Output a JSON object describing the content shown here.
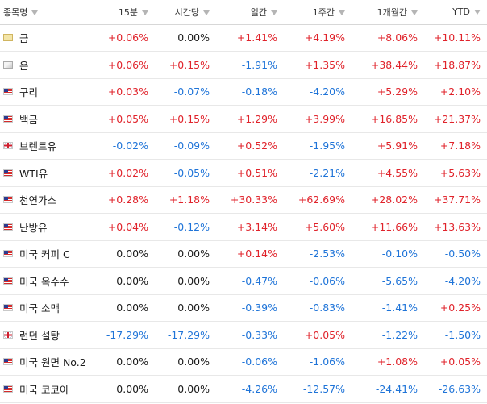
{
  "colors": {
    "positive": "#e0232b",
    "negative": "#1f74d8",
    "neutral": "#1a1a1a"
  },
  "columns": [
    "종목명",
    "15분",
    "시간당",
    "일간",
    "1주간",
    "1개월간",
    "YTD"
  ],
  "rows": [
    {
      "name": "금",
      "flag": "gold-icon",
      "values": [
        "+0.06%",
        "0.00%",
        "+1.41%",
        "+4.19%",
        "+8.06%",
        "+10.11%"
      ]
    },
    {
      "name": "은",
      "flag": "silver-icon",
      "values": [
        "+0.06%",
        "+0.15%",
        "-1.91%",
        "+1.35%",
        "+38.44%",
        "+18.87%"
      ]
    },
    {
      "name": "구리",
      "flag": "us-flag-icon",
      "values": [
        "+0.03%",
        "-0.07%",
        "-0.18%",
        "-4.20%",
        "+5.29%",
        "+2.10%"
      ]
    },
    {
      "name": "백금",
      "flag": "us-flag-icon",
      "values": [
        "+0.05%",
        "+0.15%",
        "+1.29%",
        "+3.99%",
        "+16.85%",
        "+21.37%"
      ]
    },
    {
      "name": "브렌트유",
      "flag": "uk-flag-icon",
      "values": [
        "-0.02%",
        "-0.09%",
        "+0.52%",
        "-1.95%",
        "+5.91%",
        "+7.18%"
      ]
    },
    {
      "name": "WTI유",
      "flag": "us-flag-icon",
      "values": [
        "+0.02%",
        "-0.05%",
        "+0.51%",
        "-2.21%",
        "+4.55%",
        "+5.63%"
      ]
    },
    {
      "name": "천연가스",
      "flag": "us-flag-icon",
      "values": [
        "+0.28%",
        "+1.18%",
        "+30.33%",
        "+62.69%",
        "+28.02%",
        "+37.71%"
      ]
    },
    {
      "name": "난방유",
      "flag": "us-flag-icon",
      "values": [
        "+0.04%",
        "-0.12%",
        "+3.14%",
        "+5.60%",
        "+11.66%",
        "+13.63%"
      ]
    },
    {
      "name": "미국 커피 C",
      "flag": "us-flag-icon",
      "values": [
        "0.00%",
        "0.00%",
        "+0.14%",
        "-2.53%",
        "-0.10%",
        "-0.50%"
      ]
    },
    {
      "name": "미국 옥수수",
      "flag": "us-flag-icon",
      "values": [
        "0.00%",
        "0.00%",
        "-0.47%",
        "-0.06%",
        "-5.65%",
        "-4.20%"
      ]
    },
    {
      "name": "미국 소맥",
      "flag": "us-flag-icon",
      "values": [
        "0.00%",
        "0.00%",
        "-0.39%",
        "-0.83%",
        "-1.41%",
        "+0.25%"
      ]
    },
    {
      "name": "런던 설탕",
      "flag": "uk-flag-icon",
      "values": [
        "-17.29%",
        "-17.29%",
        "-0.33%",
        "+0.05%",
        "-1.22%",
        "-1.50%"
      ]
    },
    {
      "name": "미국 원면 No.2",
      "flag": "us-flag-icon",
      "values": [
        "0.00%",
        "0.00%",
        "-0.06%",
        "-1.06%",
        "+1.08%",
        "+0.05%"
      ]
    },
    {
      "name": "미국 코코아",
      "flag": "us-flag-icon",
      "values": [
        "0.00%",
        "0.00%",
        "-4.26%",
        "-12.57%",
        "-24.41%",
        "-26.63%"
      ]
    }
  ]
}
